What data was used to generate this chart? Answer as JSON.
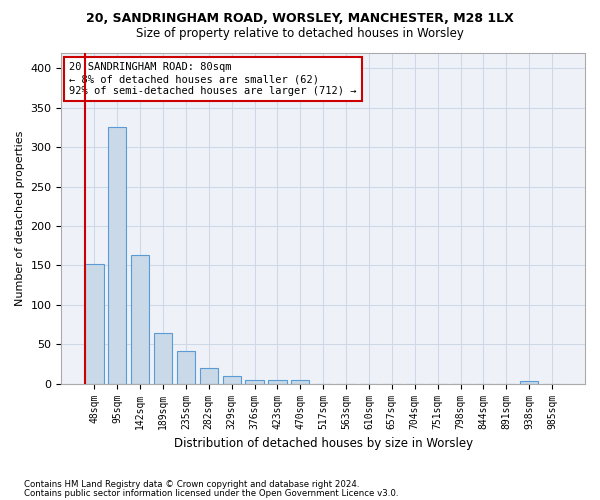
{
  "title1": "20, SANDRINGHAM ROAD, WORSLEY, MANCHESTER, M28 1LX",
  "title2": "Size of property relative to detached houses in Worsley",
  "xlabel": "Distribution of detached houses by size in Worsley",
  "ylabel": "Number of detached properties",
  "footnote1": "Contains HM Land Registry data © Crown copyright and database right 2024.",
  "footnote2": "Contains public sector information licensed under the Open Government Licence v3.0.",
  "bins": [
    "48sqm",
    "95sqm",
    "142sqm",
    "189sqm",
    "235sqm",
    "282sqm",
    "329sqm",
    "376sqm",
    "423sqm",
    "470sqm",
    "517sqm",
    "563sqm",
    "610sqm",
    "657sqm",
    "704sqm",
    "751sqm",
    "798sqm",
    "844sqm",
    "891sqm",
    "938sqm",
    "985sqm"
  ],
  "values": [
    152,
    325,
    163,
    64,
    42,
    20,
    10,
    5,
    5,
    5,
    0,
    0,
    0,
    0,
    0,
    0,
    0,
    0,
    0,
    4,
    0
  ],
  "bar_color": "#c9d9e8",
  "bar_edge_color": "#5b9bd5",
  "grid_color": "#d0d8e8",
  "bg_color": "#eef2f8",
  "red_line_color": "#cc0000",
  "annotation_text": "20 SANDRINGHAM ROAD: 80sqm\n← 8% of detached houses are smaller (62)\n92% of semi-detached houses are larger (712) →",
  "annotation_box_color": "#cc0000",
  "ylim": [
    0,
    420
  ],
  "yticks": [
    0,
    50,
    100,
    150,
    200,
    250,
    300,
    350,
    400
  ]
}
